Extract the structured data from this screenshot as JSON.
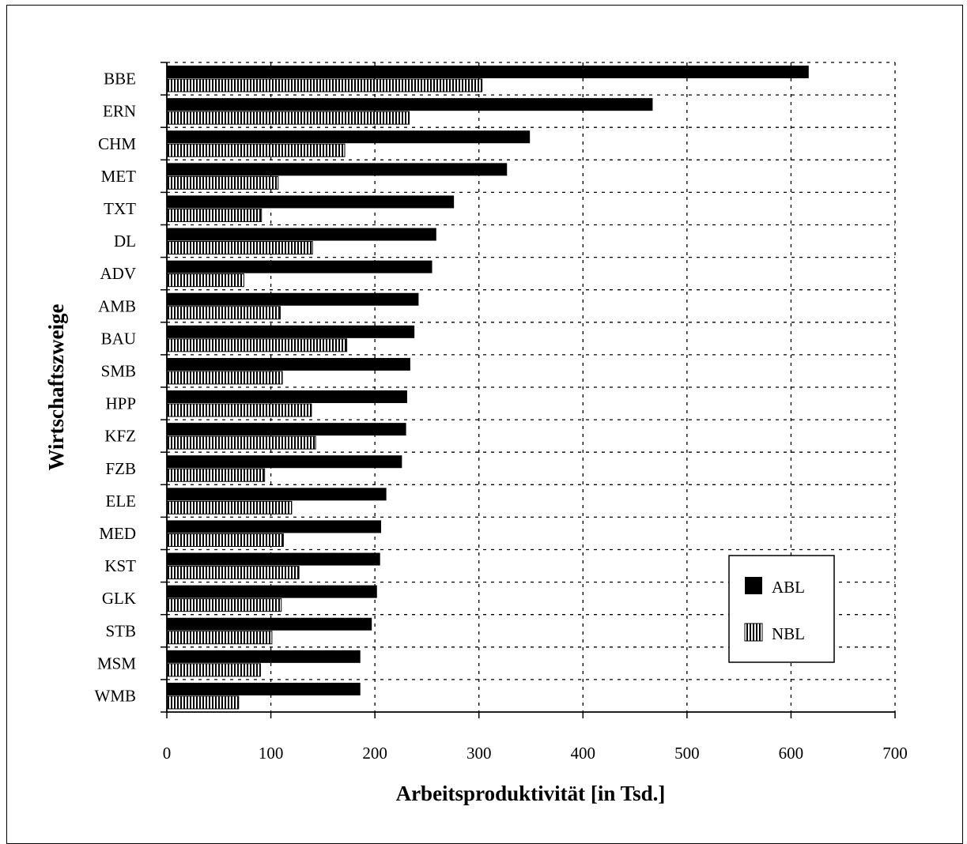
{
  "chart_data": {
    "type": "bar",
    "orientation": "horizontal",
    "xlabel": "Arbeitsproduktivität [in Tsd.]",
    "ylabel": "Wirtschaftszweige",
    "xlim": [
      0,
      700
    ],
    "xticks": [
      0,
      100,
      200,
      300,
      400,
      500,
      600,
      700
    ],
    "grid": true,
    "legend_position": "bottom-right",
    "categories": [
      "BBE",
      "ERN",
      "CHM",
      "MET",
      "TXT",
      "DL",
      "ADV",
      "AMB",
      "BAU",
      "SMB",
      "HPP",
      "KFZ",
      "FZB",
      "ELE",
      "MED",
      "KST",
      "GLK",
      "STB",
      "MSM",
      "WMB"
    ],
    "series": [
      {
        "name": "ABL",
        "fill": "solid",
        "values": [
          617,
          467,
          349,
          327,
          276,
          259,
          255,
          242,
          238,
          234,
          231,
          230,
          226,
          211,
          206,
          205,
          202,
          197,
          186,
          186
        ]
      },
      {
        "name": "NBL",
        "fill": "hatched",
        "values": [
          303,
          233,
          171,
          107,
          91,
          140,
          74,
          109,
          173,
          111,
          139,
          143,
          94,
          120,
          112,
          127,
          110,
          101,
          90,
          69
        ]
      }
    ],
    "colors": {
      "bar": "#000000",
      "grid": "#000000",
      "background": "#ffffff"
    }
  }
}
